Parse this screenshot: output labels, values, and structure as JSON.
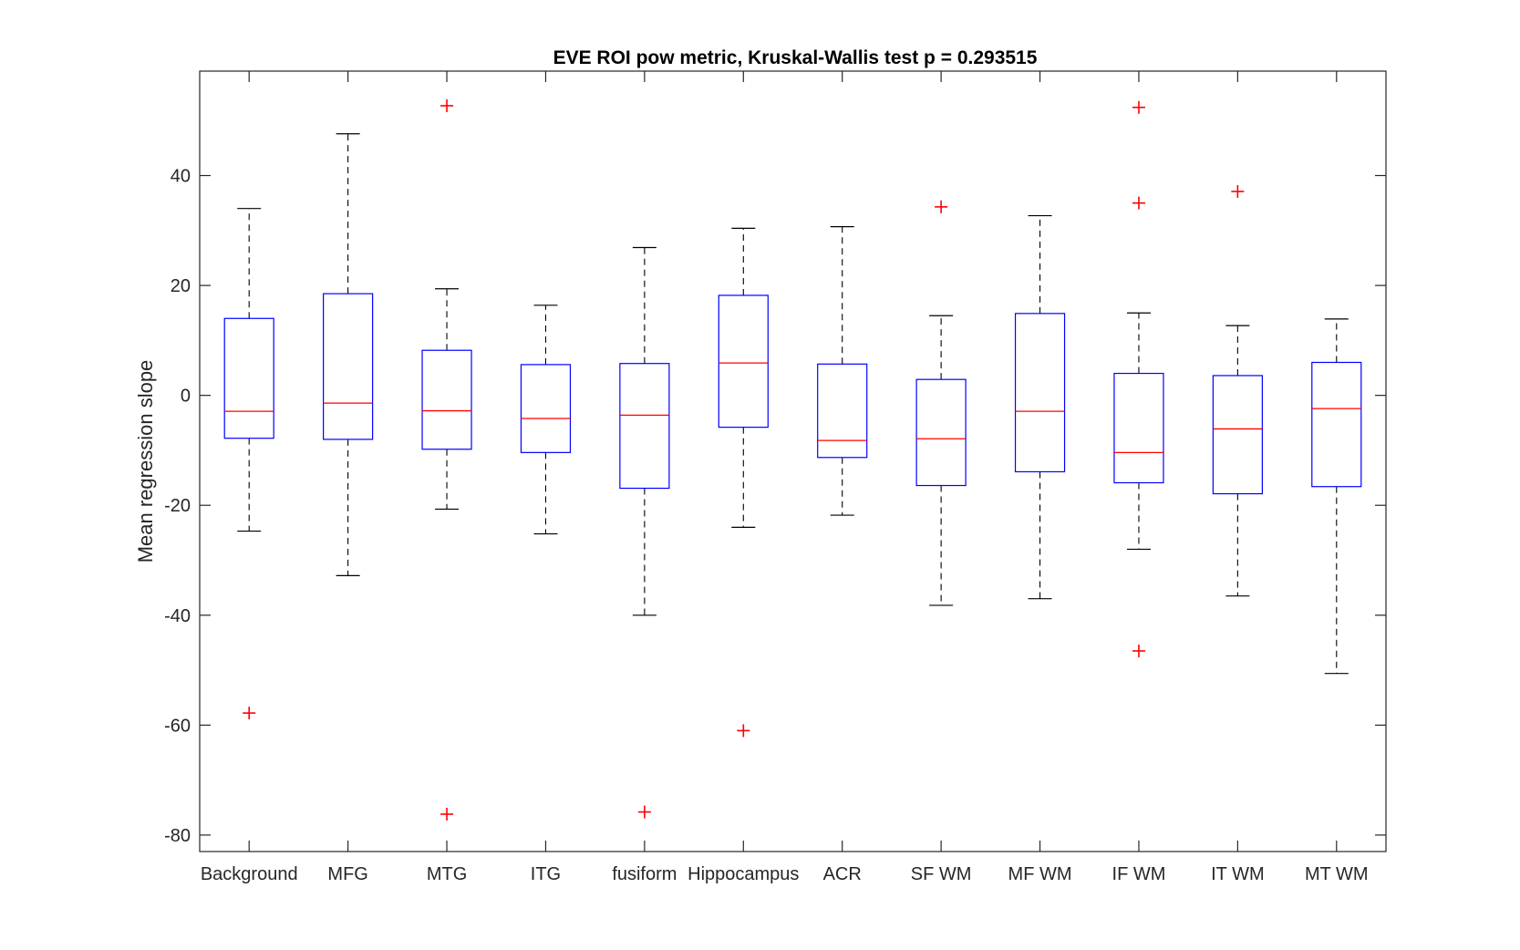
{
  "chart_data": {
    "type": "boxplot",
    "title": "EVE ROI pow metric, Kruskal-Wallis test p = 0.293515",
    "xlabel": "",
    "ylabel": "Mean regression slope",
    "ylim": [
      -83,
      59
    ],
    "yticks": [
      40,
      20,
      0,
      -20,
      -40,
      -60,
      -80
    ],
    "ytick_labels": [
      "40",
      "20",
      "0",
      "-20",
      "-40",
      "-60",
      "-80"
    ],
    "grid": false,
    "colors": {
      "box": "#0000ff",
      "median": "#ff0000",
      "whisker": "#000000",
      "outlier": "#ff0000",
      "axes": "#262626"
    },
    "categories": [
      "Background",
      "MFG",
      "MTG",
      "ITG",
      "fusiform",
      "Hippocampus",
      "ACR",
      "SF WM",
      "MF WM",
      "IF WM",
      "IT WM",
      "MT WM"
    ],
    "boxes": [
      {
        "category": "Background",
        "whisker_low": -24.7,
        "q1": -7.8,
        "median": -2.9,
        "q3": 14.0,
        "whisker_high": 34.0,
        "outliers": [
          -57.8
        ]
      },
      {
        "category": "MFG",
        "whisker_low": -32.8,
        "q1": -8.0,
        "median": -1.4,
        "q3": 18.5,
        "whisker_high": 47.6,
        "outliers": []
      },
      {
        "category": "MTG",
        "whisker_low": -20.7,
        "q1": -9.8,
        "median": -2.8,
        "q3": 8.2,
        "whisker_high": 19.4,
        "outliers": [
          52.7,
          -76.2
        ]
      },
      {
        "category": "ITG",
        "whisker_low": -25.2,
        "q1": -10.4,
        "median": -4.2,
        "q3": 5.6,
        "whisker_high": 16.4,
        "outliers": []
      },
      {
        "category": "fusiform",
        "whisker_low": -40.0,
        "q1": -16.9,
        "median": -3.6,
        "q3": 5.8,
        "whisker_high": 26.9,
        "outliers": [
          -75.8
        ]
      },
      {
        "category": "Hippocampus",
        "whisker_low": -24.0,
        "q1": -5.8,
        "median": 5.9,
        "q3": 18.2,
        "whisker_high": 30.4,
        "outliers": [
          -61.0
        ]
      },
      {
        "category": "ACR",
        "whisker_low": -21.8,
        "q1": -11.3,
        "median": -8.2,
        "q3": 5.7,
        "whisker_high": 30.7,
        "outliers": []
      },
      {
        "category": "SF WM",
        "whisker_low": -38.2,
        "q1": -16.4,
        "median": -7.9,
        "q3": 2.9,
        "whisker_high": 14.5,
        "outliers": [
          34.3
        ]
      },
      {
        "category": "MF WM",
        "whisker_low": -37.0,
        "q1": -13.9,
        "median": -2.9,
        "q3": 14.9,
        "whisker_high": 32.7,
        "outliers": []
      },
      {
        "category": "IF WM",
        "whisker_low": -28.0,
        "q1": -15.9,
        "median": -10.4,
        "q3": 4.0,
        "whisker_high": 15.0,
        "outliers": [
          52.4,
          35.0,
          -46.5
        ]
      },
      {
        "category": "IT WM",
        "whisker_low": -36.5,
        "q1": -17.9,
        "median": -6.1,
        "q3": 3.6,
        "whisker_high": 12.7,
        "outliers": [
          37.1
        ]
      },
      {
        "category": "MT WM",
        "whisker_low": -50.6,
        "q1": -16.6,
        "median": -2.4,
        "q3": 6.0,
        "whisker_high": 13.9,
        "outliers": []
      }
    ]
  }
}
